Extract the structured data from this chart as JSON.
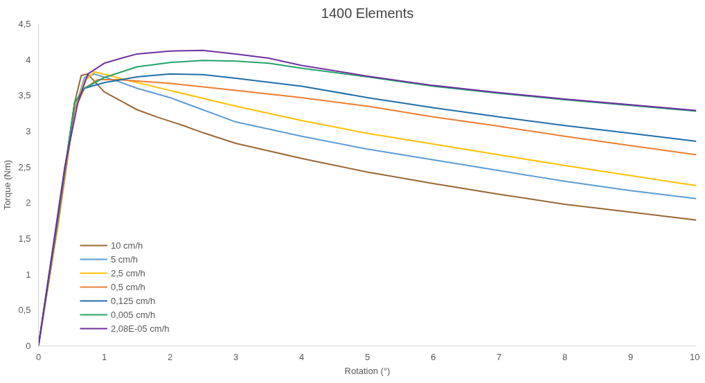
{
  "chart_data": {
    "type": "line",
    "title": "1400 Elements",
    "xlabel": "Rotation (°)",
    "ylabel": "Torque (Nm)",
    "xlim": [
      0,
      10
    ],
    "ylim": [
      0,
      4.5
    ],
    "xticks": [
      0,
      1,
      2,
      3,
      4,
      5,
      6,
      7,
      8,
      9,
      10
    ],
    "yticks": [
      0,
      {
        "value": 0.5,
        "label": "0,5"
      },
      1,
      {
        "value": 1.5,
        "label": "1,5"
      },
      2,
      {
        "value": 2.5,
        "label": "2,5"
      },
      3,
      {
        "value": 3.5,
        "label": "3,5"
      },
      4,
      {
        "value": 4.5,
        "label": "4,5"
      }
    ],
    "grid": false,
    "legend": "bottom left",
    "line_style": "solid",
    "series": [
      {
        "name": "10 cm/h",
        "color": "#996633",
        "x": [
          0,
          0.3,
          0.55,
          0.65,
          0.75,
          0.9,
          1.0,
          1.3,
          1.5,
          1.8,
          2.2,
          2.5,
          3,
          4,
          5,
          6,
          7,
          8,
          9,
          10
        ],
        "values": [
          0,
          1.8,
          3.4,
          3.78,
          3.8,
          3.65,
          3.55,
          3.4,
          3.3,
          3.2,
          3.08,
          2.98,
          2.83,
          2.62,
          2.43,
          2.27,
          2.12,
          1.98,
          1.87,
          1.76
        ]
      },
      {
        "name": "5 cm/h",
        "color": "#5b9bd5",
        "x": [
          0,
          0.3,
          0.55,
          0.7,
          0.85,
          1.2,
          1.5,
          2,
          2.5,
          3,
          4,
          5,
          6,
          7,
          8,
          9,
          10
        ],
        "values": [
          0,
          1.7,
          3.3,
          3.75,
          3.8,
          3.7,
          3.6,
          3.47,
          3.3,
          3.13,
          2.93,
          2.75,
          2.6,
          2.45,
          2.3,
          2.17,
          2.06
        ]
      },
      {
        "name": "2,5 cm/h",
        "color": "#ffc000",
        "x": [
          0,
          0.3,
          0.55,
          0.7,
          0.85,
          1.2,
          1.5,
          2,
          3,
          4,
          5,
          6,
          7,
          8,
          9,
          10
        ],
        "values": [
          0,
          1.7,
          3.3,
          3.7,
          3.83,
          3.75,
          3.68,
          3.57,
          3.35,
          3.15,
          2.97,
          2.82,
          2.67,
          2.52,
          2.38,
          2.24
        ]
      },
      {
        "name": "0,5 cm/h",
        "color": "#ed7d31",
        "x": [
          0,
          0.3,
          0.55,
          0.7,
          0.9,
          1.2,
          2,
          3,
          4,
          5,
          6,
          7,
          8,
          9,
          10
        ],
        "values": [
          0,
          1.75,
          3.3,
          3.6,
          3.72,
          3.72,
          3.67,
          3.57,
          3.47,
          3.35,
          3.2,
          3.07,
          2.93,
          2.8,
          2.67
        ]
      },
      {
        "name": "0,125 cm/h",
        "color": "#1f6fa8",
        "x": [
          0,
          0.3,
          0.55,
          0.7,
          1,
          1.5,
          2,
          2.5,
          3,
          4,
          5,
          6,
          7,
          8,
          9,
          10
        ],
        "values": [
          0,
          1.8,
          3.4,
          3.6,
          3.68,
          3.76,
          3.8,
          3.79,
          3.74,
          3.63,
          3.47,
          3.33,
          3.2,
          3.08,
          2.97,
          2.86
        ]
      },
      {
        "name": "0,005 cm/h",
        "color": "#23a36b",
        "x": [
          0,
          0.3,
          0.55,
          0.7,
          1,
          1.5,
          2,
          2.5,
          3,
          3.5,
          4,
          5,
          6,
          7,
          8,
          9,
          10
        ],
        "values": [
          0,
          1.85,
          3.4,
          3.6,
          3.75,
          3.9,
          3.96,
          3.99,
          3.98,
          3.95,
          3.88,
          3.76,
          3.63,
          3.53,
          3.44,
          3.36,
          3.28
        ]
      },
      {
        "name": "2,08E-05 cm/h",
        "color": "#7030a0",
        "x": [
          0,
          0.4,
          0.6,
          0.75,
          1,
          1.3,
          1.5,
          2,
          2.5,
          3,
          3.5,
          4,
          5,
          6,
          7,
          8,
          9,
          10
        ],
        "values": [
          0,
          2.5,
          3.4,
          3.8,
          3.95,
          4.03,
          4.08,
          4.12,
          4.13,
          4.08,
          4.02,
          3.92,
          3.77,
          3.64,
          3.54,
          3.45,
          3.37,
          3.29
        ]
      }
    ]
  }
}
